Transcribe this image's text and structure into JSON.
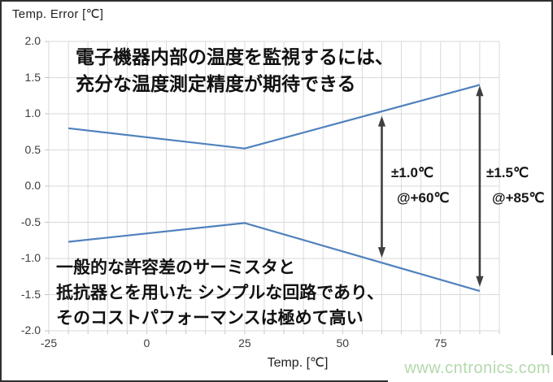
{
  "chart_data": {
    "type": "line",
    "ylabel": "Temp. Error [℃]",
    "xlabel": "Temp. [℃]",
    "grid": true,
    "legend": "none",
    "x_axis": {
      "min": -25,
      "max": 90,
      "grid_step": 5,
      "tick_values": [
        -25,
        0,
        25,
        50,
        75
      ],
      "tick_labels": [
        "-25",
        "0",
        "25",
        "50",
        "75"
      ]
    },
    "y_axis": {
      "min": -2.0,
      "max": 2.0,
      "grid_step": 0.5,
      "tick_values": [
        2.0,
        1.5,
        1.0,
        0.5,
        0.0,
        -0.5,
        -1.0,
        -1.5,
        -2.0
      ],
      "tick_labels": [
        "2.0",
        "1.5",
        "1.0",
        "0.5",
        "0.0",
        "-0.5",
        "-1.0",
        "-1.5",
        "-2.0"
      ]
    },
    "series": [
      {
        "name": "upper-error-bound",
        "color": "#4f81bd",
        "points": [
          [
            -20,
            0.8
          ],
          [
            25,
            0.52
          ],
          [
            85,
            1.4
          ]
        ]
      },
      {
        "name": "lower-error-bound",
        "color": "#4f81bd",
        "points": [
          [
            -20,
            -0.77
          ],
          [
            25,
            -0.51
          ],
          [
            85,
            -1.45
          ]
        ]
      }
    ],
    "arrows": [
      {
        "x": 60,
        "y_from": -0.99,
        "y_to": 0.97
      },
      {
        "x": 85,
        "y_from": -1.39,
        "y_to": 1.39
      }
    ],
    "annotations": [
      {
        "line1": "±1.0℃",
        "line2": "@+60℃"
      },
      {
        "line1": "±1.5℃",
        "line2": "@+85℃"
      }
    ],
    "colors": {
      "grid": "#d9d9d9",
      "tick": "#c4c4c4",
      "arrow": "#3f3f3f"
    }
  },
  "notes": {
    "top": [
      "電子機器内部の温度を監視するには、",
      "充分な温度測定精度が期待できる"
    ],
    "bottom": [
      "一般的な許容差のサーミスタと",
      "抵抗器とを用いた シンプルな回路であり、",
      "そのコストパフォーマンスは極めて高い"
    ]
  },
  "watermark": {
    "text": "www.cntronics.com",
    "color": "#b3d9ab"
  }
}
